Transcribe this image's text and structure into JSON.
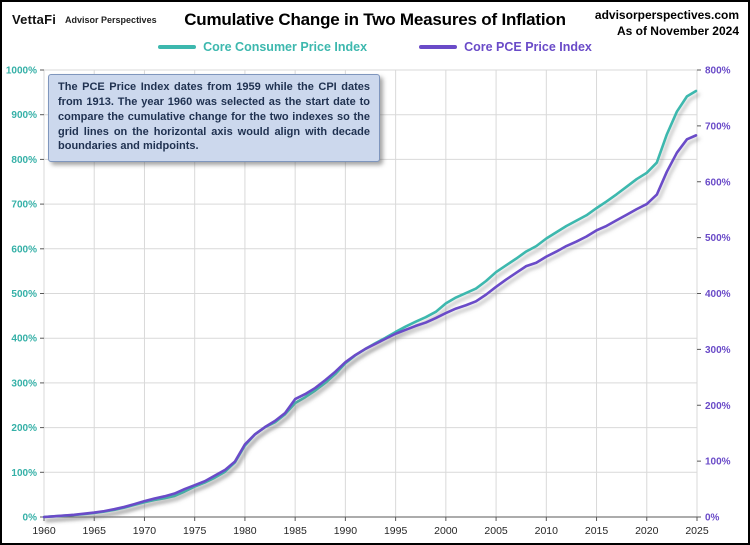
{
  "header": {
    "logo_primary": "VettaFi",
    "logo_secondary": "Advisor Perspectives",
    "site": "advisorperspectives.com",
    "as_of": "As of November 2024"
  },
  "title": "Cumulative Change in Two Measures of Inflation",
  "annotation": "The PCE Price Index dates from 1959 while the CPI dates from 1913.  The year 1960 was selected as the start date to compare the cumulative change for the two indexes so the grid lines on the horizontal axis would align with decade boundaries and midpoints.",
  "colors": {
    "cpi": "#3db8ae",
    "pce": "#6a4bc8",
    "left_axis_text": "#35b0a7",
    "right_axis_text": "#6a4bc8",
    "x_axis_text": "#262626",
    "grid": "#d9d9d9",
    "axis": "#595959",
    "annotation_bg": "#ccd8ed",
    "annotation_border": "#7f96bd"
  },
  "chart_data": {
    "type": "line",
    "title": "Cumulative Change in Two Measures of Inflation",
    "grid": true,
    "legend_position": "top",
    "x_axis": {
      "range": [
        1960,
        2025
      ],
      "tick_values": [
        1960,
        1965,
        1970,
        1975,
        1980,
        1985,
        1990,
        1995,
        2000,
        2005,
        2010,
        2015,
        2020,
        2025
      ],
      "tick_labels": [
        "1960",
        "1965",
        "1970",
        "1975",
        "1980",
        "1985",
        "1990",
        "1995",
        "2000",
        "2005",
        "2010",
        "2015",
        "2020",
        "2025"
      ]
    },
    "y_axis_left": {
      "range": [
        0,
        1000
      ],
      "step": 100,
      "tick_values": [
        0,
        100,
        200,
        300,
        400,
        500,
        600,
        700,
        800,
        900,
        1000
      ],
      "tick_labels": [
        "0%",
        "100%",
        "200%",
        "300%",
        "400%",
        "500%",
        "600%",
        "700%",
        "800%",
        "900%",
        "1000%"
      ]
    },
    "y_axis_right": {
      "range": [
        0,
        800
      ],
      "step": 100,
      "tick_values": [
        0,
        100,
        200,
        300,
        400,
        500,
        600,
        700,
        800
      ],
      "tick_labels": [
        "0%",
        "100%",
        "200%",
        "300%",
        "400%",
        "500%",
        "600%",
        "700%",
        "800%"
      ]
    },
    "series": [
      {
        "name": "Core Consumer Price Index",
        "axis": "left",
        "color": "#3db8ae",
        "points": [
          [
            1960,
            0
          ],
          [
            1961,
            1.5
          ],
          [
            1962,
            3
          ],
          [
            1963,
            4.5
          ],
          [
            1964,
            6.5
          ],
          [
            1965,
            9
          ],
          [
            1966,
            12
          ],
          [
            1967,
            16
          ],
          [
            1968,
            21
          ],
          [
            1969,
            27
          ],
          [
            1970,
            33
          ],
          [
            1971,
            38
          ],
          [
            1972,
            42
          ],
          [
            1973,
            47
          ],
          [
            1974,
            57
          ],
          [
            1975,
            68
          ],
          [
            1976,
            77
          ],
          [
            1977,
            88
          ],
          [
            1978,
            101
          ],
          [
            1979,
            122
          ],
          [
            1980,
            160
          ],
          [
            1981,
            185
          ],
          [
            1982,
            201
          ],
          [
            1983,
            212
          ],
          [
            1984,
            230
          ],
          [
            1985,
            255
          ],
          [
            1986,
            268
          ],
          [
            1987,
            283
          ],
          [
            1988,
            300
          ],
          [
            1989,
            320
          ],
          [
            1990,
            344
          ],
          [
            1991,
            362
          ],
          [
            1992,
            376
          ],
          [
            1993,
            389
          ],
          [
            1994,
            401
          ],
          [
            1995,
            414
          ],
          [
            1996,
            426
          ],
          [
            1997,
            437
          ],
          [
            1998,
            447
          ],
          [
            1999,
            459
          ],
          [
            2000,
            478
          ],
          [
            2001,
            491
          ],
          [
            2002,
            501
          ],
          [
            2003,
            511
          ],
          [
            2004,
            528
          ],
          [
            2005,
            548
          ],
          [
            2006,
            563
          ],
          [
            2007,
            578
          ],
          [
            2008,
            594
          ],
          [
            2009,
            606
          ],
          [
            2010,
            623
          ],
          [
            2011,
            637
          ],
          [
            2012,
            651
          ],
          [
            2013,
            663
          ],
          [
            2014,
            675
          ],
          [
            2015,
            691
          ],
          [
            2016,
            706
          ],
          [
            2017,
            722
          ],
          [
            2018,
            739
          ],
          [
            2019,
            756
          ],
          [
            2020,
            770
          ],
          [
            2021,
            793
          ],
          [
            2022,
            856
          ],
          [
            2023,
            907
          ],
          [
            2024,
            941
          ],
          [
            2024.9,
            953
          ]
        ]
      },
      {
        "name": "Core PCE Price Index",
        "axis": "right",
        "color": "#6a4bc8",
        "points": [
          [
            1960,
            0
          ],
          [
            1961,
            1.3
          ],
          [
            1962,
            2.7
          ],
          [
            1963,
            4
          ],
          [
            1964,
            6
          ],
          [
            1965,
            8
          ],
          [
            1966,
            10.5
          ],
          [
            1967,
            14
          ],
          [
            1968,
            18
          ],
          [
            1969,
            23
          ],
          [
            1970,
            28.5
          ],
          [
            1971,
            33
          ],
          [
            1972,
            37
          ],
          [
            1973,
            42
          ],
          [
            1974,
            50
          ],
          [
            1975,
            57
          ],
          [
            1976,
            64
          ],
          [
            1977,
            74
          ],
          [
            1978,
            84
          ],
          [
            1979,
            99
          ],
          [
            1980,
            130
          ],
          [
            1981,
            148
          ],
          [
            1982,
            161
          ],
          [
            1983,
            172
          ],
          [
            1984,
            186
          ],
          [
            1985,
            211
          ],
          [
            1986,
            220
          ],
          [
            1987,
            231
          ],
          [
            1988,
            245
          ],
          [
            1989,
            260
          ],
          [
            1990,
            277
          ],
          [
            1991,
            290
          ],
          [
            1992,
            301
          ],
          [
            1993,
            310
          ],
          [
            1994,
            319
          ],
          [
            1995,
            328
          ],
          [
            1996,
            335
          ],
          [
            1997,
            342
          ],
          [
            1998,
            348
          ],
          [
            1999,
            356
          ],
          [
            2000,
            365
          ],
          [
            2001,
            373
          ],
          [
            2002,
            379
          ],
          [
            2003,
            386
          ],
          [
            2004,
            398
          ],
          [
            2005,
            412
          ],
          [
            2006,
            425
          ],
          [
            2007,
            437
          ],
          [
            2008,
            449
          ],
          [
            2009,
            455
          ],
          [
            2010,
            466
          ],
          [
            2011,
            475
          ],
          [
            2012,
            485
          ],
          [
            2013,
            493
          ],
          [
            2014,
            502
          ],
          [
            2015,
            513
          ],
          [
            2016,
            521
          ],
          [
            2017,
            531
          ],
          [
            2018,
            541
          ],
          [
            2019,
            551
          ],
          [
            2020,
            560
          ],
          [
            2021,
            577
          ],
          [
            2022,
            618
          ],
          [
            2023,
            652
          ],
          [
            2024,
            676
          ],
          [
            2024.9,
            683
          ]
        ]
      }
    ]
  }
}
